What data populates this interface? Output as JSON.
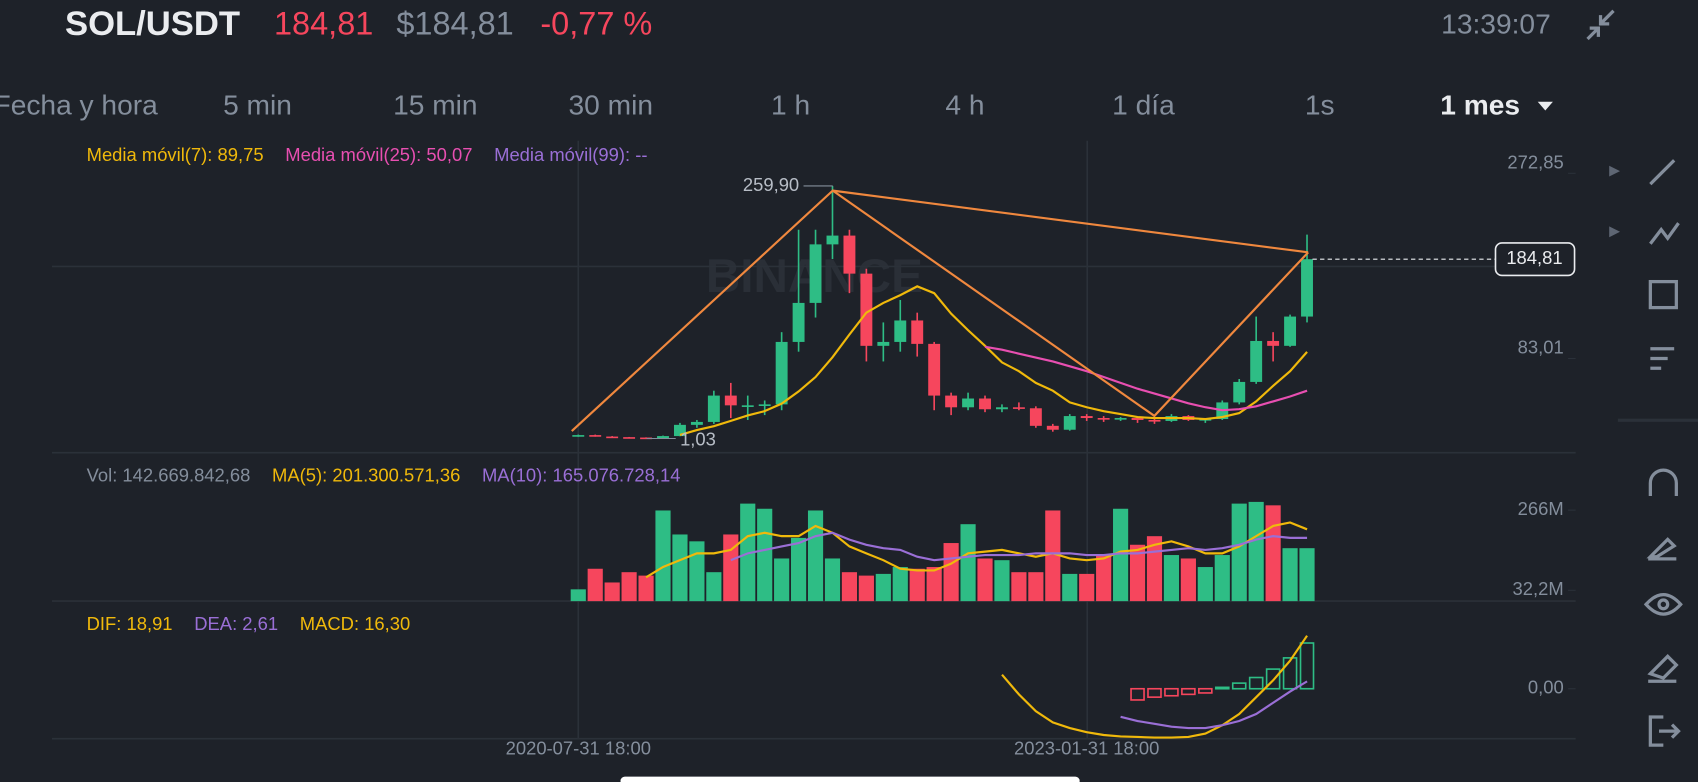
{
  "header": {
    "pair": "SOL/USDT",
    "last_price": "184,81",
    "usd_price": "$184,81",
    "change": "-0,77 %",
    "time": "13:39:07",
    "watermark": "BINANCE",
    "timeframes": [
      {
        "label": "Fecha y hora",
        "selected": false
      },
      {
        "label": "5 min",
        "selected": false
      },
      {
        "label": "15 min",
        "selected": false
      },
      {
        "label": "30 min",
        "selected": false
      },
      {
        "label": "1 h",
        "selected": false
      },
      {
        "label": "4 h",
        "selected": false
      },
      {
        "label": "1 día",
        "selected": false
      },
      {
        "label": "1s",
        "selected": false
      },
      {
        "label": "1 mes",
        "selected": true
      }
    ]
  },
  "chart_data": {
    "type": "candlestick",
    "categories": [
      "2020-07-31 18:00",
      null,
      null,
      null,
      null,
      null,
      null,
      null,
      null,
      null,
      null,
      null,
      null,
      null,
      null,
      null,
      null,
      null,
      null,
      null,
      null,
      null,
      null,
      null,
      null,
      null,
      null,
      null,
      null,
      null,
      "2023-01-31 18:00",
      null,
      null,
      null,
      null,
      null,
      null,
      null,
      null,
      null,
      null,
      null,
      null,
      null
    ],
    "ma_labels": [
      {
        "text": "Media móvil(7): 89,75",
        "color": "#f0b90b"
      },
      {
        "text": "Media móvil(25): 50,07",
        "color": "#e84fb1"
      },
      {
        "text": "Media móvil(99): --",
        "color": "#9a6fd6"
      }
    ],
    "candles": {
      "open": [
        3.0,
        4.5,
        3.0,
        2.4,
        2.0,
        1.5,
        3.5,
        15,
        18,
        45,
        35,
        35,
        36,
        100,
        140,
        200,
        209,
        170,
        96,
        100,
        122,
        98,
        45,
        33,
        42,
        31,
        33,
        32,
        14,
        10,
        24,
        22,
        21,
        22,
        20,
        19,
        24,
        20,
        21,
        38,
        59,
        101,
        96,
        126
      ],
      "high": [
        5,
        5,
        3.5,
        2.6,
        2.2,
        4,
        17,
        20,
        50,
        58,
        45,
        40,
        110,
        215,
        215,
        259.9,
        215,
        175,
        120,
        143,
        130,
        100,
        48,
        48,
        45,
        36,
        38,
        34,
        16,
        26,
        26,
        24,
        23,
        23,
        21,
        26,
        25,
        22,
        40,
        62,
        126,
        110,
        128,
        210
      ],
      "low": [
        2.8,
        2.9,
        2.2,
        1.8,
        1.03,
        1.4,
        3.3,
        12,
        16,
        22,
        20,
        25,
        30,
        90,
        125,
        185,
        150,
        80,
        80,
        90,
        85,
        30,
        25,
        30,
        28,
        28,
        30,
        12,
        8,
        9,
        19,
        18,
        19,
        17,
        16,
        18,
        19,
        17,
        20,
        36,
        57,
        80,
        95,
        120
      ],
      "close": [
        4.5,
        3.0,
        2.4,
        2.0,
        1.5,
        3.5,
        15,
        18,
        45,
        35,
        35,
        36,
        100,
        140,
        200,
        209,
        170,
        96,
        100,
        122,
        98,
        45,
        33,
        42,
        31,
        33,
        32,
        14,
        10,
        24,
        22,
        21,
        22,
        20,
        19,
        24,
        20,
        21,
        38,
        59,
        101,
        96,
        126,
        184.81
      ]
    },
    "ma7": [
      null,
      null,
      null,
      null,
      null,
      null,
      4.6,
      9.6,
      13.6,
      19.1,
      24.6,
      29.1,
      36.7,
      49.3,
      64,
      84.3,
      107.6,
      130,
      140,
      148,
      157,
      150,
      129,
      112,
      96,
      79,
      70,
      58,
      50,
      38,
      33,
      29,
      26,
      23,
      22,
      22,
      22,
      21,
      23,
      27,
      39,
      55,
      70,
      89.75
    ],
    "ma25": [
      null,
      null,
      null,
      null,
      null,
      null,
      null,
      null,
      null,
      null,
      null,
      null,
      null,
      null,
      null,
      null,
      null,
      null,
      null,
      null,
      null,
      null,
      null,
      null,
      95,
      92,
      88,
      84,
      80,
      75,
      70,
      64,
      58,
      52,
      47,
      42,
      37,
      33,
      30,
      31,
      34,
      39,
      44,
      50.07
    ],
    "high_label": {
      "value": 259.9,
      "label": "259,90"
    },
    "low_label": {
      "value": 1.03,
      "label": "1,03"
    },
    "price_tag": {
      "value": 184.81,
      "label": "184,81"
    },
    "ylim": [
      -13.58,
      306.16
    ],
    "yticks": [
      {
        "value": 83.01,
        "label": "83,01"
      },
      {
        "value": 272.85,
        "label": "272,85"
      }
    ],
    "up_color": "#2ebd85",
    "down_color": "#f6465d",
    "volume": {
      "labels": [
        {
          "text": "Vol: 142.669.842,68",
          "color": "#848e9c"
        },
        {
          "text": "MA(5): 201.300.571,36",
          "color": "#f0b90b"
        },
        {
          "text": "MA(10): 165.076.728,14",
          "color": "#9a6fd6"
        }
      ],
      "values": [
        35,
        95,
        55,
        85,
        75,
        265,
        195,
        175,
        85,
        195,
        285,
        270,
        125,
        185,
        265,
        125,
        85,
        75,
        80,
        100,
        95,
        100,
        170,
        225,
        125,
        120,
        85,
        85,
        265,
        80,
        80,
        135,
        270,
        165,
        190,
        135,
        125,
        100,
        135,
        285,
        290,
        280,
        155,
        155
      ],
      "ma5": [
        null,
        null,
        null,
        null,
        70,
        100,
        120,
        140,
        140,
        150,
        190,
        200,
        190,
        190,
        220,
        200,
        160,
        140,
        120,
        95,
        90,
        90,
        110,
        140,
        145,
        150,
        140,
        130,
        140,
        125,
        120,
        125,
        145,
        150,
        165,
        175,
        160,
        140,
        140,
        160,
        190,
        220,
        230,
        210
      ],
      "ma10": [
        null,
        null,
        null,
        null,
        null,
        null,
        null,
        null,
        null,
        120,
        140,
        150,
        160,
        170,
        190,
        200,
        180,
        165,
        155,
        150,
        130,
        120,
        125,
        130,
        135,
        135,
        135,
        140,
        140,
        140,
        135,
        135,
        140,
        140,
        145,
        150,
        155,
        150,
        155,
        165,
        180,
        190,
        185,
        185
      ],
      "ylim": [
        0.6,
        433.4
      ],
      "yticks": [
        {
          "value": 32.2,
          "label": "32,2M"
        },
        {
          "value": 266,
          "label": "266M"
        }
      ]
    },
    "macd": {
      "labels": [
        {
          "text": "DIF: 18,91",
          "color": "#f0b90b"
        },
        {
          "text": "DEA: 2,61",
          "color": "#9a6fd6"
        },
        {
          "text": "MACD: 16,30",
          "color": "#f0b90b"
        }
      ],
      "dif": [
        null,
        null,
        null,
        null,
        null,
        null,
        null,
        null,
        null,
        null,
        null,
        null,
        null,
        null,
        null,
        null,
        null,
        null,
        null,
        null,
        null,
        null,
        null,
        null,
        null,
        5,
        -2,
        -8,
        -12,
        -14,
        -15.5,
        -16.5,
        -17,
        -17.2,
        -17.4,
        -17.4,
        -17.2,
        -16,
        -13,
        -9,
        -3,
        3,
        10,
        18.91
      ],
      "dea": [
        null,
        null,
        null,
        null,
        null,
        null,
        null,
        null,
        null,
        null,
        null,
        null,
        null,
        null,
        null,
        null,
        null,
        null,
        null,
        null,
        null,
        null,
        null,
        null,
        null,
        null,
        null,
        null,
        null,
        null,
        null,
        null,
        -10,
        -11.5,
        -12.5,
        -13.5,
        -14,
        -14,
        -13,
        -11.5,
        -9,
        -5,
        -1,
        2.61
      ],
      "hist": [
        null,
        null,
        null,
        null,
        null,
        null,
        null,
        null,
        null,
        null,
        null,
        null,
        null,
        null,
        null,
        null,
        null,
        null,
        null,
        null,
        null,
        null,
        null,
        null,
        null,
        null,
        null,
        null,
        null,
        null,
        null,
        null,
        null,
        -4,
        -3,
        -2.5,
        -2,
        -1.5,
        0.5,
        2,
        4,
        7,
        11,
        16.3
      ],
      "ylim": [
        -17.8,
        29.3
      ],
      "yticks": [
        {
          "value": 0,
          "label": "0,00"
        }
      ]
    }
  }
}
